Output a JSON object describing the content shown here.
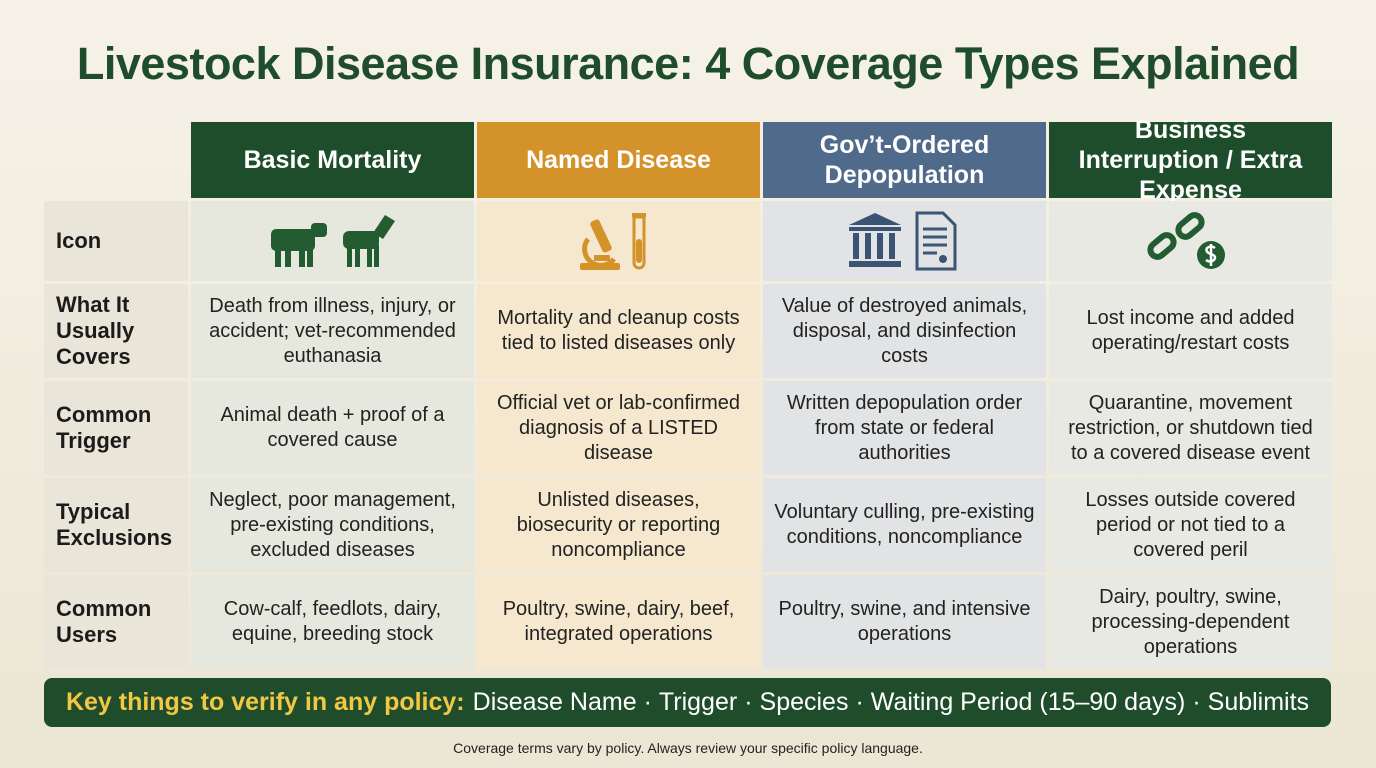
{
  "header": {
    "title": "Livestock Disease Insurance: 4 Coverage Types Explained"
  },
  "table": {
    "columns": [
      "Basic Mortality",
      "Named Disease",
      "Gov’t-Ordered Depopulation",
      "Business Interruption / Extra Expense"
    ],
    "row_labels": [
      "Icon",
      "What It Usually Covers",
      "Common Trigger",
      "Typical Exclusions",
      "Common Users"
    ],
    "rows": [
      [
        "Death from illness, injury, or accident; vet-recommended euthanasia",
        "Mortality and cleanup costs tied to listed diseases only",
        "Value of destroyed animals, disposal, and disinfection costs",
        "Lost income and added operating/restart costs"
      ],
      [
        "Animal death + proof of a covered cause",
        "Official vet or lab-confirmed diagnosis of a LISTED disease",
        "Written depopulation order from state or federal authorities",
        "Quarantine, movement restriction, or shutdown tied to a covered disease event"
      ],
      [
        "Neglect, poor management, pre-existing conditions, excluded diseases",
        "Unlisted diseases, biosecurity or reporting noncompliance",
        "Voluntary culling, pre-existing conditions, noncompliance",
        "Losses outside covered period or not tied to a covered peril"
      ],
      [
        "Cow-calf, feedlots, dairy, equine, breeding stock",
        "Poultry, swine, dairy, beef, integrated operations",
        "Poultry, swine, and intensive operations",
        "Dairy, poultry, swine, processing-dependent operations"
      ]
    ]
  },
  "key_bar": {
    "label": "Key things to verify in any policy:",
    "items": [
      "Disease Name",
      "Trigger",
      "Species",
      "Waiting Period (15–90 days)",
      "Sublimits"
    ],
    "separator": "·"
  },
  "footnote": "Coverage terms vary by policy. Always review your specific policy language."
}
